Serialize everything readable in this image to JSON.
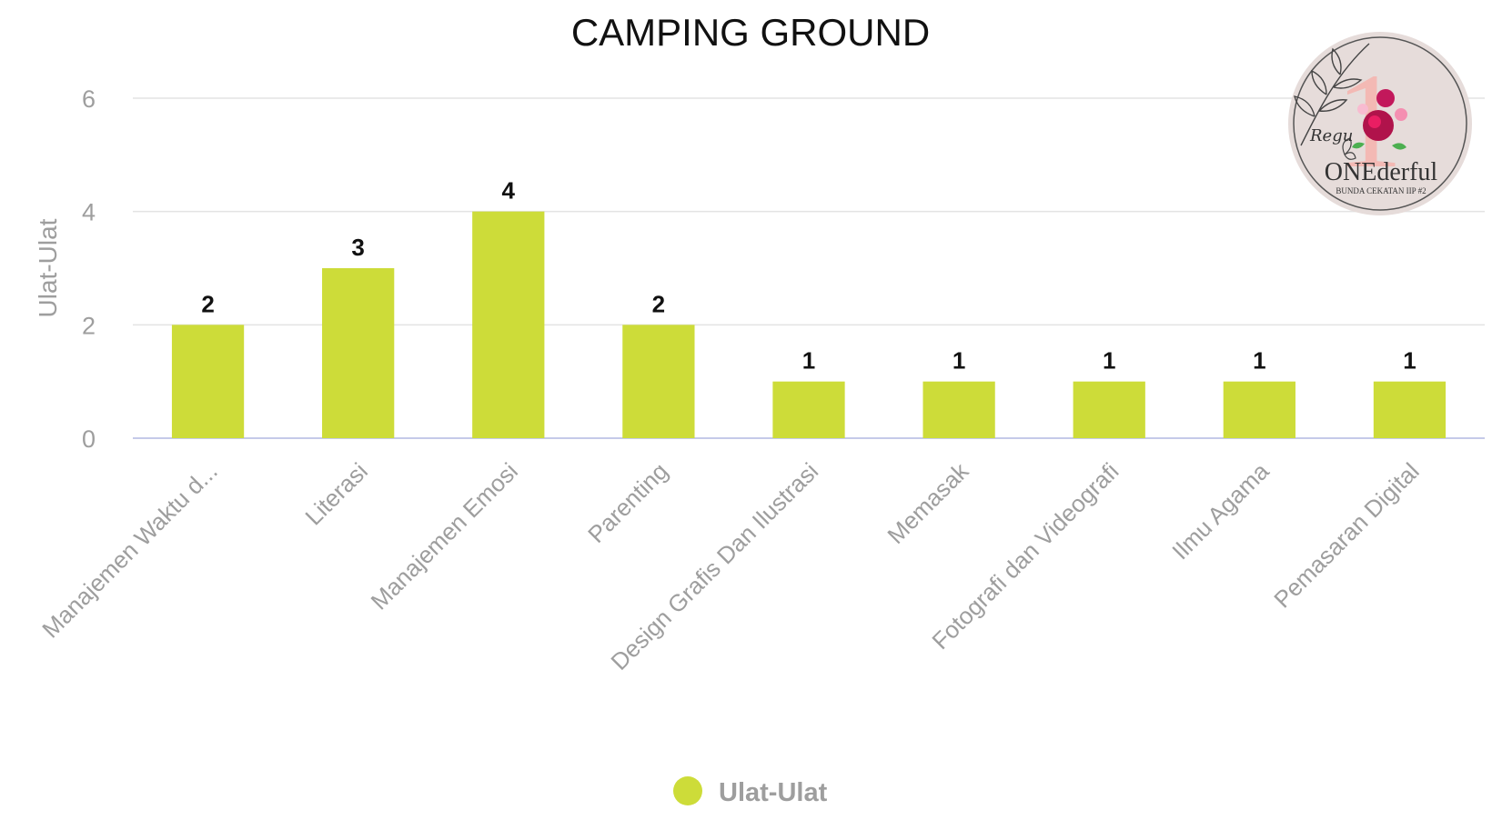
{
  "chart_data": {
    "type": "bar",
    "title": "CAMPING GROUND",
    "ylabel": "Ulat-Ulat",
    "xlabel": "",
    "ylim": [
      0,
      6
    ],
    "yticks": [
      0,
      2,
      4,
      6
    ],
    "grid": true,
    "legend_position": "bottom-center",
    "categories": [
      "Manajemen Waktu d...",
      "Literasi",
      "Manajemen Emosi",
      "Parenting",
      "Design Grafis Dan Ilustrasi",
      "Memasak",
      "Fotografi dan Videografi",
      "Ilmu Agama",
      "Pemasaran Digital"
    ],
    "series": [
      {
        "name": "Ulat-Ulat",
        "values": [
          2,
          3,
          4,
          2,
          1,
          1,
          1,
          1,
          1
        ],
        "color": "#cddc39"
      }
    ],
    "data_labels": true
  },
  "logo": {
    "text_main": "ONEderful",
    "text_script": "Regu",
    "text_sub": "BUNDA CEKATAN IIP #2",
    "numeral": "1"
  },
  "colors": {
    "bar": "#cddc39",
    "grid": "#e3e3e3",
    "axis": "#c5cae9",
    "logo_bg": "#e6dcda",
    "numeral": "#f3b9b4",
    "rose": "#c2185b"
  }
}
